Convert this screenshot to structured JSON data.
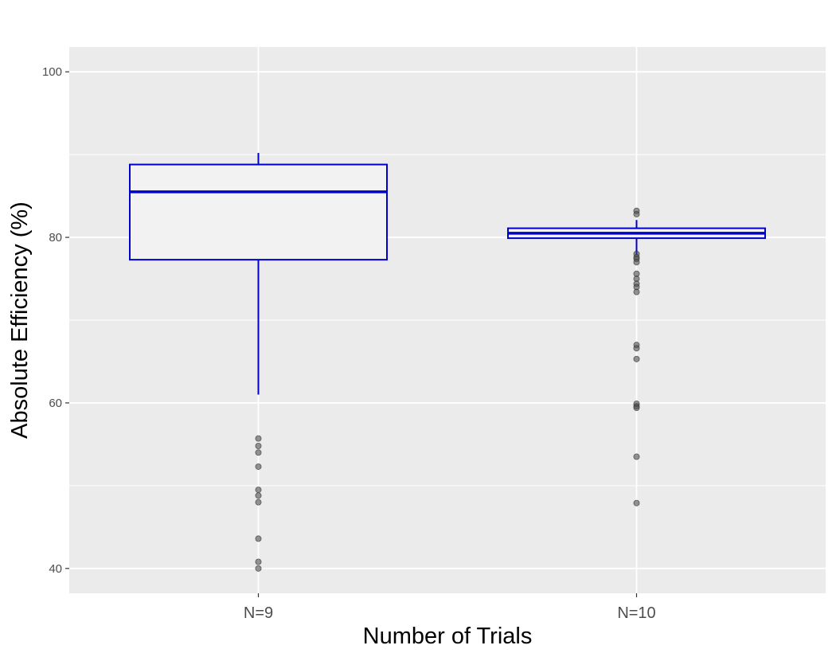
{
  "chart_data": {
    "type": "boxplot",
    "title": "",
    "xlabel": "Number of Trials",
    "ylabel": "Absolute Efficiency (%)",
    "ylim": [
      37,
      103
    ],
    "yticks": [
      40,
      60,
      80,
      100
    ],
    "y_minor_ticks": [
      50,
      70,
      90
    ],
    "grid": true,
    "categories": [
      "N=9",
      "N=10"
    ],
    "boxes": [
      {
        "category": "N=9",
        "whisker_low": 61.0,
        "q1": 77.3,
        "median": 85.5,
        "q3": 88.8,
        "whisker_high": 90.2,
        "outliers": [
          55.7,
          54.8,
          54.0,
          52.3,
          49.5,
          48.8,
          48.0,
          43.6,
          40.8,
          40.0
        ]
      },
      {
        "category": "N=10",
        "whisker_low": 77.9,
        "q1": 79.9,
        "median": 80.5,
        "q3": 81.1,
        "whisker_high": 82.1,
        "outliers": [
          83.2,
          82.8,
          78.0,
          77.6,
          77.4,
          77.0,
          75.6,
          75.0,
          74.4,
          74.0,
          73.4,
          67.0,
          66.6,
          65.3,
          59.9,
          59.6,
          59.4,
          53.5,
          47.9
        ]
      }
    ],
    "colors": {
      "panel": "#ebebeb",
      "grid": "#ffffff",
      "box_stroke": "#0000cd",
      "box_fill": "#f2f2f2",
      "outlier": "#4d4d4d"
    }
  }
}
